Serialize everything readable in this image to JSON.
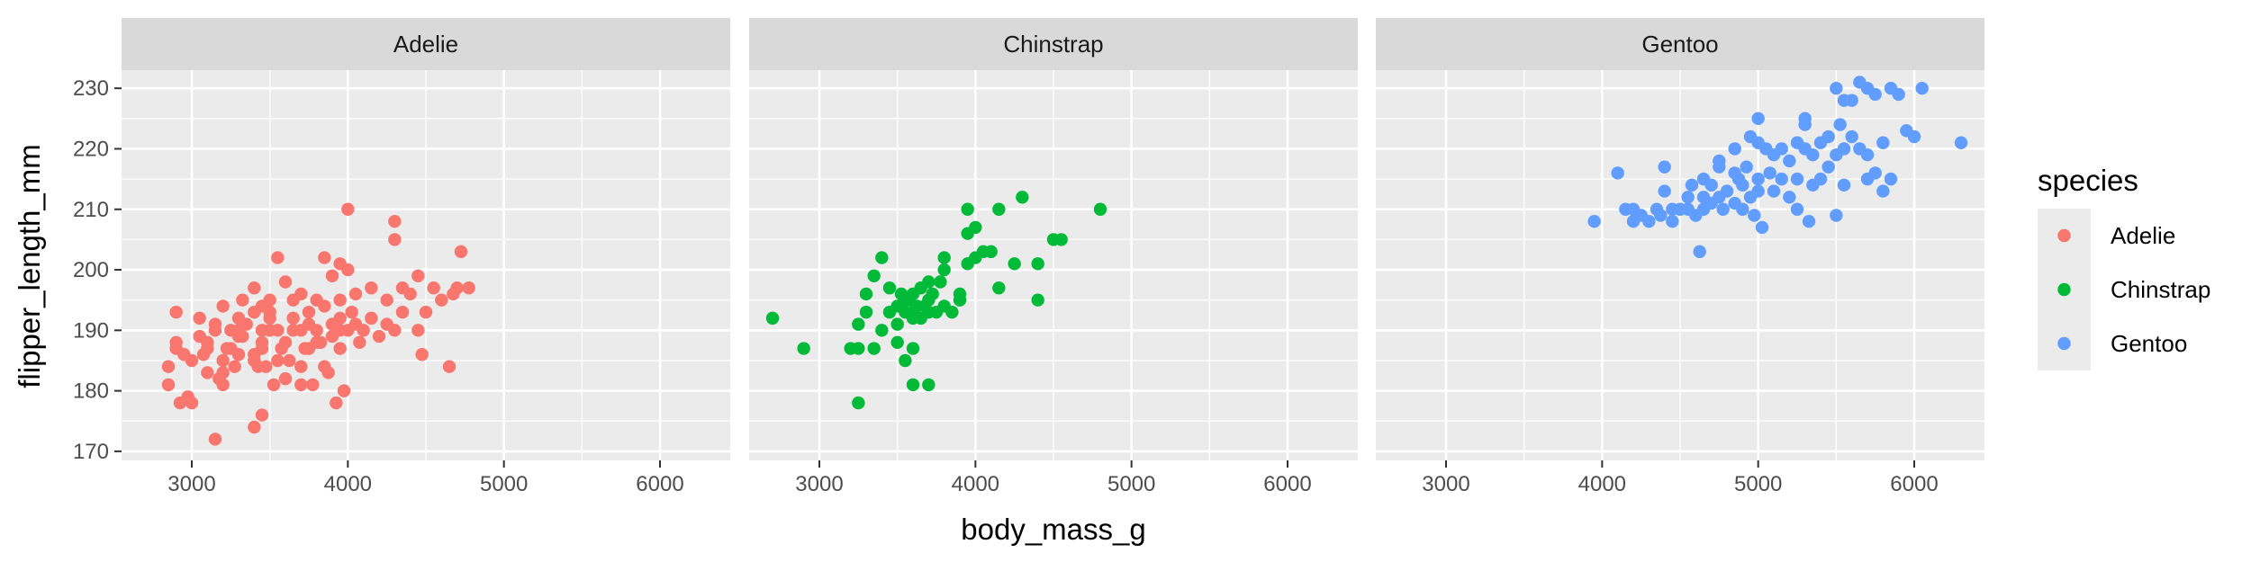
{
  "chart_data": {
    "type": "scatter",
    "facet_by": "species",
    "xlabel": "body_mass_g",
    "ylabel": "flipper_length_mm",
    "xlim": [
      2550,
      6450
    ],
    "ylim": [
      168.5,
      233
    ],
    "x_ticks": [
      3000,
      4000,
      5000,
      6000
    ],
    "y_ticks": [
      170,
      180,
      190,
      200,
      210,
      220,
      230
    ],
    "grid": true,
    "legend": {
      "title": "species",
      "position": "right",
      "entries": [
        "Adelie",
        "Chinstrap",
        "Gentoo"
      ]
    },
    "colors": {
      "Adelie": "#F8766D",
      "Chinstrap": "#00BA38",
      "Gentoo": "#619CFF"
    },
    "panel_background": "#EBEBEB",
    "strip_background": "#D9D9D9",
    "facets": [
      {
        "name": "Adelie",
        "points": [
          [
            2850,
            181
          ],
          [
            2850,
            184
          ],
          [
            2900,
            187
          ],
          [
            2900,
            188
          ],
          [
            2900,
            193
          ],
          [
            2925,
            178
          ],
          [
            2975,
            179
          ],
          [
            3000,
            185
          ],
          [
            3050,
            189
          ],
          [
            3050,
            192
          ],
          [
            3075,
            186
          ],
          [
            3100,
            188
          ],
          [
            3150,
            190
          ],
          [
            3150,
            191
          ],
          [
            3175,
            182
          ],
          [
            3200,
            183
          ],
          [
            3200,
            185
          ],
          [
            3225,
            187
          ],
          [
            3250,
            187
          ],
          [
            3250,
            190
          ],
          [
            3275,
            184
          ],
          [
            3300,
            186
          ],
          [
            3300,
            190
          ],
          [
            3325,
            189
          ],
          [
            3325,
            195
          ],
          [
            3350,
            191
          ],
          [
            3400,
            185
          ],
          [
            3400,
            186
          ],
          [
            3400,
            193
          ],
          [
            3425,
            184
          ],
          [
            3450,
            187
          ],
          [
            3450,
            188
          ],
          [
            3450,
            190
          ],
          [
            3450,
            194
          ],
          [
            3475,
            184
          ],
          [
            3500,
            190
          ],
          [
            3500,
            193
          ],
          [
            3525,
            181
          ],
          [
            3550,
            185
          ],
          [
            3550,
            190
          ],
          [
            3575,
            187
          ],
          [
            3600,
            182
          ],
          [
            3625,
            185
          ],
          [
            3650,
            190
          ],
          [
            3650,
            195
          ],
          [
            3700,
            181
          ],
          [
            3700,
            184
          ],
          [
            3700,
            190
          ],
          [
            3725,
            187
          ],
          [
            3750,
            187
          ],
          [
            3750,
            191
          ],
          [
            3775,
            181
          ],
          [
            3800,
            188
          ],
          [
            3800,
            190
          ],
          [
            3800,
            195
          ],
          [
            3825,
            188
          ],
          [
            3850,
            184
          ],
          [
            3875,
            183
          ],
          [
            3900,
            189
          ],
          [
            3900,
            191
          ],
          [
            3925,
            178
          ],
          [
            3950,
            187
          ],
          [
            3950,
            190
          ],
          [
            3950,
            192
          ],
          [
            3975,
            180
          ],
          [
            4000,
            190
          ],
          [
            4025,
            193
          ],
          [
            4050,
            191
          ],
          [
            4075,
            188
          ],
          [
            4100,
            190
          ],
          [
            4150,
            192
          ],
          [
            4200,
            189
          ],
          [
            4250,
            191
          ],
          [
            4300,
            190
          ],
          [
            4350,
            193
          ],
          [
            4400,
            196
          ],
          [
            4450,
            190
          ],
          [
            4475,
            186
          ],
          [
            4500,
            193
          ],
          [
            4550,
            197
          ],
          [
            4600,
            195
          ],
          [
            4650,
            184
          ],
          [
            4675,
            196
          ],
          [
            4700,
            197
          ],
          [
            4725,
            203
          ],
          [
            4775,
            197
          ],
          [
            3150,
            172
          ],
          [
            3400,
            174
          ],
          [
            3450,
            176
          ],
          [
            3000,
            178
          ],
          [
            3100,
            183
          ],
          [
            3200,
            181
          ],
          [
            3550,
            202
          ],
          [
            3600,
            198
          ],
          [
            3700,
            196
          ],
          [
            3850,
            202
          ],
          [
            3900,
            199
          ],
          [
            3950,
            201
          ],
          [
            4000,
            210
          ],
          [
            4000,
            200
          ],
          [
            4300,
            208
          ],
          [
            4300,
            205
          ],
          [
            3500,
            195
          ],
          [
            3400,
            197
          ],
          [
            3300,
            192
          ],
          [
            3200,
            194
          ],
          [
            3650,
            192
          ],
          [
            3750,
            193
          ],
          [
            3850,
            194
          ],
          [
            3950,
            195
          ],
          [
            4050,
            196
          ],
          [
            4150,
            197
          ],
          [
            4250,
            195
          ],
          [
            4350,
            197
          ],
          [
            4450,
            199
          ],
          [
            3600,
            188
          ],
          [
            3300,
            189
          ],
          [
            3100,
            187
          ],
          [
            2950,
            186
          ],
          [
            3500,
            192
          ]
        ]
      },
      {
        "name": "Chinstrap",
        "points": [
          [
            2700,
            192
          ],
          [
            2900,
            187
          ],
          [
            3200,
            187
          ],
          [
            3250,
            178
          ],
          [
            3250,
            187
          ],
          [
            3250,
            191
          ],
          [
            3300,
            193
          ],
          [
            3300,
            196
          ],
          [
            3350,
            187
          ],
          [
            3350,
            199
          ],
          [
            3400,
            190
          ],
          [
            3400,
            202
          ],
          [
            3450,
            193
          ],
          [
            3450,
            197
          ],
          [
            3500,
            188
          ],
          [
            3500,
            191
          ],
          [
            3500,
            194
          ],
          [
            3525,
            196
          ],
          [
            3550,
            185
          ],
          [
            3550,
            195
          ],
          [
            3575,
            195
          ],
          [
            3600,
            181
          ],
          [
            3600,
            187
          ],
          [
            3600,
            193
          ],
          [
            3600,
            196
          ],
          [
            3625,
            194
          ],
          [
            3650,
            192
          ],
          [
            3650,
            197
          ],
          [
            3675,
            194
          ],
          [
            3700,
            181
          ],
          [
            3700,
            193
          ],
          [
            3700,
            198
          ],
          [
            3725,
            196
          ],
          [
            3750,
            193
          ],
          [
            3775,
            198
          ],
          [
            3800,
            194
          ],
          [
            3800,
            200
          ],
          [
            3800,
            202
          ],
          [
            3850,
            193
          ],
          [
            3900,
            195
          ],
          [
            3900,
            196
          ],
          [
            3950,
            201
          ],
          [
            3950,
            206
          ],
          [
            3950,
            210
          ],
          [
            4000,
            202
          ],
          [
            4000,
            207
          ],
          [
            4050,
            203
          ],
          [
            4100,
            203
          ],
          [
            4150,
            197
          ],
          [
            4150,
            210
          ],
          [
            4250,
            201
          ],
          [
            4300,
            212
          ],
          [
            4400,
            195
          ],
          [
            4400,
            201
          ],
          [
            4500,
            205
          ],
          [
            4550,
            205
          ],
          [
            4800,
            210
          ],
          [
            3700,
            195
          ],
          [
            3550,
            193
          ],
          [
            3600,
            192
          ]
        ]
      },
      {
        "name": "Gentoo",
        "points": [
          [
            3950,
            208
          ],
          [
            4100,
            216
          ],
          [
            4150,
            210
          ],
          [
            4200,
            208
          ],
          [
            4200,
            210
          ],
          [
            4250,
            209
          ],
          [
            4300,
            208
          ],
          [
            4350,
            210
          ],
          [
            4375,
            209
          ],
          [
            4400,
            213
          ],
          [
            4400,
            217
          ],
          [
            4450,
            208
          ],
          [
            4450,
            210
          ],
          [
            4500,
            210
          ],
          [
            4550,
            212
          ],
          [
            4575,
            214
          ],
          [
            4600,
            209
          ],
          [
            4625,
            203
          ],
          [
            4650,
            210
          ],
          [
            4650,
            215
          ],
          [
            4700,
            211
          ],
          [
            4700,
            214
          ],
          [
            4750,
            212
          ],
          [
            4750,
            218
          ],
          [
            4775,
            210
          ],
          [
            4800,
            213
          ],
          [
            4850,
            216
          ],
          [
            4850,
            220
          ],
          [
            4875,
            215
          ],
          [
            4900,
            210
          ],
          [
            4900,
            214
          ],
          [
            4925,
            217
          ],
          [
            4950,
            212
          ],
          [
            4975,
            209
          ],
          [
            5000,
            213
          ],
          [
            5000,
            215
          ],
          [
            5000,
            221
          ],
          [
            5000,
            225
          ],
          [
            5025,
            207
          ],
          [
            5050,
            220
          ],
          [
            5075,
            216
          ],
          [
            5100,
            213
          ],
          [
            5150,
            215
          ],
          [
            5150,
            220
          ],
          [
            5200,
            212
          ],
          [
            5200,
            218
          ],
          [
            5250,
            210
          ],
          [
            5250,
            215
          ],
          [
            5250,
            221
          ],
          [
            5300,
            220
          ],
          [
            5300,
            225
          ],
          [
            5325,
            208
          ],
          [
            5350,
            214
          ],
          [
            5400,
            215
          ],
          [
            5400,
            221
          ],
          [
            5450,
            217
          ],
          [
            5500,
            209
          ],
          [
            5500,
            219
          ],
          [
            5525,
            224
          ],
          [
            5550,
            214
          ],
          [
            5550,
            220
          ],
          [
            5550,
            228
          ],
          [
            5600,
            222
          ],
          [
            5650,
            220
          ],
          [
            5650,
            231
          ],
          [
            5700,
            215
          ],
          [
            5700,
            219
          ],
          [
            5700,
            230
          ],
          [
            5750,
            216
          ],
          [
            5800,
            213
          ],
          [
            5800,
            221
          ],
          [
            5850,
            215
          ],
          [
            5850,
            230
          ],
          [
            5950,
            223
          ],
          [
            6000,
            222
          ],
          [
            6050,
            230
          ],
          [
            6300,
            221
          ],
          [
            5500,
            230
          ],
          [
            5600,
            228
          ],
          [
            5750,
            229
          ],
          [
            5300,
            224
          ],
          [
            4950,
            222
          ],
          [
            4750,
            217
          ],
          [
            4550,
            210
          ],
          [
            5100,
            219
          ],
          [
            5350,
            219
          ],
          [
            5450,
            222
          ],
          [
            5900,
            229
          ],
          [
            4650,
            212
          ],
          [
            4850,
            211
          ]
        ]
      }
    ]
  }
}
